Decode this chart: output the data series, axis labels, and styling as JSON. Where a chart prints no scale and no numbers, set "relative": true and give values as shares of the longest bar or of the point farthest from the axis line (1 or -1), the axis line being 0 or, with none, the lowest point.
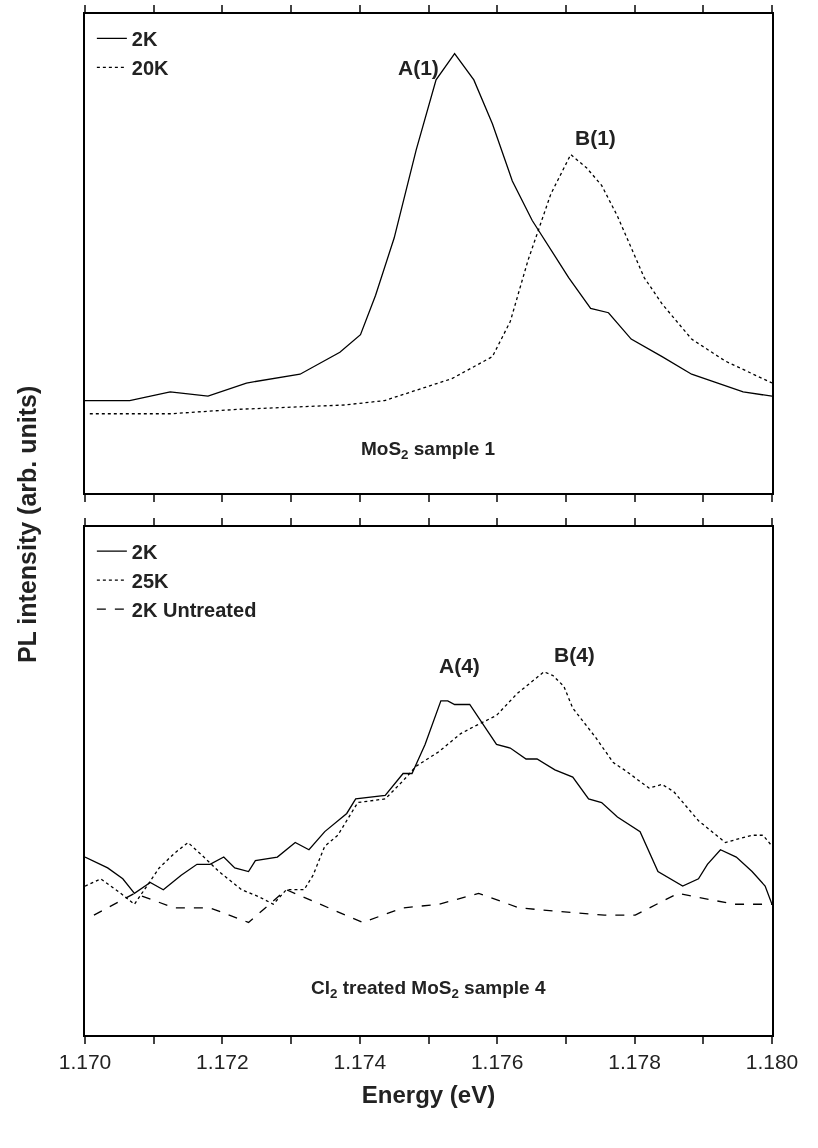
{
  "chart_data": [
    {
      "type": "line",
      "relative": true,
      "ylabel": "PL intensity (arb. units)",
      "legend": "top left",
      "tick_labels": false,
      "xlim": [
        1.17,
        1.18
      ],
      "xticks": [
        {
          "value": 1.17,
          "label": null
        },
        {
          "value": 1.171,
          "label": null
        },
        {
          "value": 1.172,
          "label": null
        },
        {
          "value": 1.173,
          "label": null
        },
        {
          "value": 1.174,
          "label": null
        },
        {
          "value": 1.175,
          "label": null
        },
        {
          "value": 1.176,
          "label": null
        },
        {
          "value": 1.177,
          "label": null
        },
        {
          "value": 1.178,
          "label": null
        },
        {
          "value": 1.179,
          "label": null
        },
        {
          "value": 1.18,
          "label": null
        }
      ],
      "series": [
        {
          "name": "2K",
          "color": "#000000",
          "line_style": "solid",
          "x": [
            1.17,
            1.17065,
            1.17124,
            1.17179,
            1.17235,
            1.17313,
            1.17371,
            1.17401,
            1.17423,
            1.1745,
            1.17482,
            1.17511,
            1.17538,
            1.17566,
            1.17593,
            1.17622,
            1.17651,
            1.17704,
            1.17736,
            1.17762,
            1.17795,
            1.1784,
            1.17883,
            1.17958,
            1.18
          ],
          "values": [
            0.21,
            0.21,
            0.23,
            0.22,
            0.25,
            0.27,
            0.32,
            0.36,
            0.45,
            0.58,
            0.78,
            0.94,
            1.0,
            0.94,
            0.84,
            0.71,
            0.62,
            0.49,
            0.42,
            0.41,
            0.35,
            0.31,
            0.27,
            0.23,
            0.22
          ]
        },
        {
          "name": "20K",
          "color": "#000000",
          "line_style": "dotted",
          "x": [
            1.17007,
            1.17124,
            1.17221,
            1.17378,
            1.17436,
            1.17534,
            1.17593,
            1.17619,
            1.17645,
            1.17678,
            1.17707,
            1.1773,
            1.17752,
            1.17775,
            1.17814,
            1.1784,
            1.17883,
            1.17932,
            1.18
          ],
          "values": [
            0.18,
            0.18,
            0.19,
            0.2,
            0.21,
            0.26,
            0.31,
            0.39,
            0.53,
            0.68,
            0.77,
            0.74,
            0.7,
            0.63,
            0.49,
            0.43,
            0.35,
            0.3,
            0.25
          ]
        }
      ],
      "annotations": [
        {
          "text": "A(1)",
          "x": 1.17538,
          "y": 1.0
        },
        {
          "text": "B(1)",
          "x": 1.17707,
          "y": 0.77
        },
        "MoS$_{2}$ sample 1"
      ]
    },
    {
      "type": "line",
      "relative": true,
      "xlabel": "Energy (eV)",
      "legend": "top left",
      "tick_labels": "x",
      "xlim": [
        1.17,
        1.18
      ],
      "xticks": [
        {
          "value": 1.17,
          "label": "1.170"
        },
        {
          "value": 1.171,
          "label": null
        },
        {
          "value": 1.172,
          "label": "1.172"
        },
        {
          "value": 1.173,
          "label": null
        },
        {
          "value": 1.174,
          "label": "1.174"
        },
        {
          "value": 1.175,
          "label": null
        },
        {
          "value": 1.176,
          "label": "1.176"
        },
        {
          "value": 1.177,
          "label": null
        },
        {
          "value": 1.178,
          "label": "1.178"
        },
        {
          "value": 1.179,
          "label": null
        },
        {
          "value": 1.18,
          "label": "1.180"
        }
      ],
      "series": [
        {
          "name": "2K",
          "color": "#000000",
          "line_style": "solid",
          "x": [
            1.17,
            1.17033,
            1.17055,
            1.17072,
            1.17095,
            1.17114,
            1.1714,
            1.17163,
            1.17182,
            1.17202,
            1.17218,
            1.17238,
            1.17248,
            1.1728,
            1.17306,
            1.17326,
            1.17349,
            1.17381,
            1.17394,
            1.17437,
            1.17463,
            1.17476,
            1.17495,
            1.17518,
            1.17528,
            1.17538,
            1.1756,
            1.17599,
            1.17619,
            1.17642,
            1.17658,
            1.17684,
            1.1771,
            1.17733,
            1.17752,
            1.17775,
            1.17808,
            1.17834,
            1.1787,
            1.17893,
            1.17906,
            1.17925,
            1.17948,
            1.17971,
            1.1799,
            1.18
          ],
          "values": [
            0.49,
            0.46,
            0.43,
            0.39,
            0.42,
            0.4,
            0.44,
            0.47,
            0.47,
            0.49,
            0.46,
            0.45,
            0.48,
            0.49,
            0.53,
            0.51,
            0.56,
            0.61,
            0.65,
            0.66,
            0.72,
            0.72,
            0.8,
            0.92,
            0.92,
            0.91,
            0.91,
            0.8,
            0.79,
            0.76,
            0.76,
            0.73,
            0.71,
            0.65,
            0.64,
            0.6,
            0.56,
            0.45,
            0.41,
            0.43,
            0.47,
            0.51,
            0.49,
            0.45,
            0.41,
            0.36
          ]
        },
        {
          "name": "25K",
          "color": "#000000",
          "line_style": "dotted",
          "x": [
            1.17,
            1.17023,
            1.17052,
            1.17072,
            1.17108,
            1.1713,
            1.1715,
            1.17173,
            1.17195,
            1.17228,
            1.17254,
            1.17274,
            1.17293,
            1.17319,
            1.17332,
            1.17349,
            1.17368,
            1.17397,
            1.17437,
            1.17463,
            1.17482,
            1.17515,
            1.17547,
            1.17567,
            1.17599,
            1.17629,
            1.17668,
            1.17681,
            1.17697,
            1.1771,
            1.17743,
            1.17769,
            1.17785,
            1.17821,
            1.1784,
            1.17857,
            1.17893,
            1.17932,
            1.17951,
            1.17971,
            1.17987,
            1.18
          ],
          "values": [
            0.41,
            0.43,
            0.39,
            0.36,
            0.46,
            0.5,
            0.53,
            0.49,
            0.45,
            0.4,
            0.38,
            0.36,
            0.4,
            0.4,
            0.44,
            0.52,
            0.55,
            0.64,
            0.65,
            0.7,
            0.74,
            0.78,
            0.83,
            0.85,
            0.88,
            0.94,
            1.0,
            0.99,
            0.96,
            0.9,
            0.82,
            0.75,
            0.73,
            0.68,
            0.69,
            0.67,
            0.59,
            0.53,
            0.54,
            0.55,
            0.55,
            0.52
          ]
        },
        {
          "name": "2K Untreated",
          "color": "#000000",
          "line_style": "dashed",
          "x": [
            1.17013,
            1.17072,
            1.1713,
            1.17182,
            1.17238,
            1.17293,
            1.17404,
            1.17463,
            1.17515,
            1.17573,
            1.17632,
            1.17691,
            1.17756,
            1.17801,
            1.17863,
            1.17945,
            1.18
          ],
          "values": [
            0.33,
            0.39,
            0.35,
            0.35,
            0.31,
            0.4,
            0.31,
            0.35,
            0.36,
            0.39,
            0.35,
            0.34,
            0.33,
            0.33,
            0.39,
            0.36,
            0.36
          ]
        }
      ],
      "annotations": [
        {
          "text": "A(4)",
          "x": 1.17518,
          "y": 0.92
        },
        {
          "text": "B(4)",
          "x": 1.17668,
          "y": 1.0
        },
        "Cl$_{2}$ treated MoS$_{2}$ sample 4"
      ]
    }
  ]
}
